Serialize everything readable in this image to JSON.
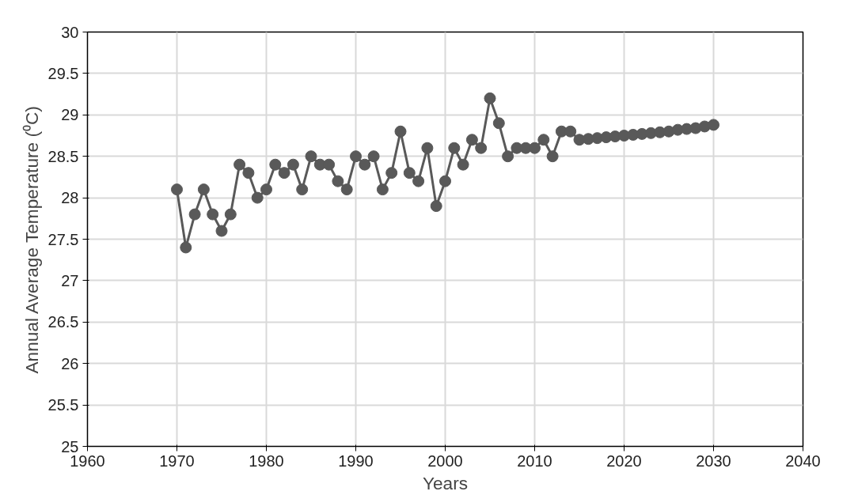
{
  "chart_data": {
    "type": "line",
    "xlabel": "Years",
    "ylabel": "Annual Average Temperature (⁰C)",
    "x": [
      1970,
      1971,
      1972,
      1973,
      1974,
      1975,
      1976,
      1977,
      1978,
      1979,
      1980,
      1981,
      1982,
      1983,
      1984,
      1985,
      1986,
      1987,
      1988,
      1989,
      1990,
      1991,
      1992,
      1993,
      1994,
      1995,
      1996,
      1997,
      1998,
      1999,
      2000,
      2001,
      2002,
      2003,
      2004,
      2005,
      2006,
      2007,
      2008,
      2009,
      2010,
      2011,
      2012,
      2013,
      2014,
      2015,
      2016,
      2017,
      2018,
      2019,
      2020,
      2021,
      2022,
      2023,
      2024,
      2025,
      2026,
      2027,
      2028,
      2029,
      2030
    ],
    "series": [
      {
        "color": "#595959",
        "values": [
          28.1,
          27.4,
          27.8,
          28.1,
          27.8,
          27.6,
          27.8,
          28.4,
          28.3,
          28.0,
          28.1,
          28.4,
          28.3,
          28.4,
          28.1,
          28.5,
          28.4,
          28.4,
          28.2,
          28.1,
          28.5,
          28.4,
          28.5,
          28.1,
          28.3,
          28.8,
          28.3,
          28.2,
          28.6,
          27.9,
          28.2,
          28.6,
          28.4,
          28.7,
          28.6,
          29.2,
          28.9,
          28.5,
          28.6,
          28.6,
          28.6,
          28.7,
          28.5,
          28.8,
          28.8,
          28.7,
          28.71,
          28.72,
          28.73,
          28.74,
          28.75,
          28.76,
          28.77,
          28.78,
          28.79,
          28.8,
          28.82,
          28.83,
          28.84,
          28.86,
          28.88
        ]
      }
    ],
    "xlim": [
      1960,
      2040
    ],
    "xticks": [
      1960,
      1970,
      1980,
      1990,
      2000,
      2010,
      2020,
      2030,
      2040
    ],
    "ylim": [
      25,
      30
    ],
    "yticks": [
      25,
      25.5,
      26,
      26.5,
      27,
      27.5,
      28,
      28.5,
      29,
      29.5,
      30
    ],
    "grid": true,
    "marker": "circle",
    "line_style": "solid"
  }
}
